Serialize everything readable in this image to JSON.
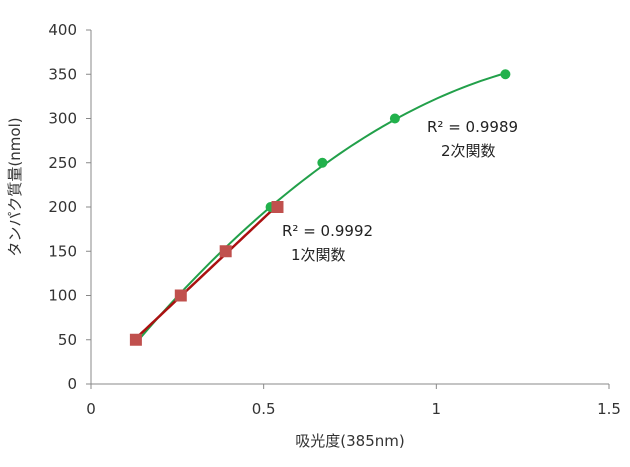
{
  "chart_data": {
    "type": "scatter",
    "title": "",
    "xlabel": "吸光度(385nm)",
    "ylabel": "タンパク質量(nmol)",
    "xlim": [
      0,
      1.5
    ],
    "ylim": [
      0,
      400
    ],
    "x_ticks": [
      "0",
      "0.5",
      "1",
      "1.5"
    ],
    "y_ticks": [
      "0",
      "50",
      "100",
      "150",
      "200",
      "250",
      "300",
      "350",
      "400"
    ],
    "grid": false,
    "legend": "none",
    "series": [
      {
        "marker": "circle",
        "color": "#22b14c",
        "x": [
          0.13,
          0.26,
          0.39,
          0.52,
          0.67,
          0.88,
          1.2
        ],
        "y": [
          50,
          100,
          150,
          200,
          250,
          300,
          350
        ],
        "trendline": "quadratic",
        "trendline_color": "#22a04a"
      },
      {
        "marker": "square",
        "color": "#c0504d",
        "x": [
          0.13,
          0.26,
          0.39,
          0.54
        ],
        "y": [
          50,
          100,
          150,
          200
        ],
        "trendline": "linear",
        "trendline_color": "#aa1111"
      }
    ],
    "annotations": [
      {
        "r2": "R² = 0.9989",
        "label": "2次関数"
      },
      {
        "r2": "R² = 0.9992",
        "label": "1次関数"
      }
    ]
  }
}
